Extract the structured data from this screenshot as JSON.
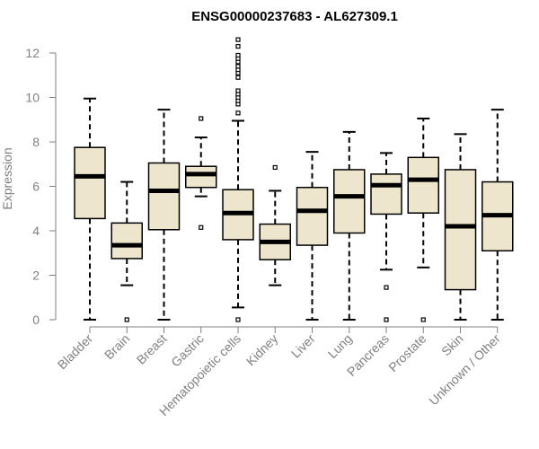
{
  "chart_data": {
    "type": "boxplot",
    "title": "ENSG00000237683 - AL627309.1",
    "xlabel": "",
    "ylabel": "Expression",
    "ylim": [
      0,
      12.6
    ],
    "yticks": [
      0,
      2,
      4,
      6,
      8,
      10,
      12
    ],
    "box_color": "#ede6cd",
    "categories": [
      "Bladder",
      "Brain",
      "Breast",
      "Gastric",
      "Hematopoietic cells",
      "Kidney",
      "Liver",
      "Lung",
      "Pancreas",
      "Prostate",
      "Skin",
      "Unknown / Other"
    ],
    "boxes": [
      {
        "category": "Bladder",
        "min": 0.0,
        "q1": 4.55,
        "median": 6.45,
        "q3": 7.75,
        "max": 9.95,
        "outliers": []
      },
      {
        "category": "Brain",
        "min": 1.55,
        "q1": 2.75,
        "median": 3.35,
        "q3": 4.35,
        "max": 6.2,
        "outliers": [
          0.0
        ]
      },
      {
        "category": "Breast",
        "min": 0.0,
        "q1": 4.05,
        "median": 5.8,
        "q3": 7.05,
        "max": 9.45,
        "outliers": []
      },
      {
        "category": "Gastric",
        "min": 5.55,
        "q1": 5.95,
        "median": 6.55,
        "q3": 6.9,
        "max": 8.2,
        "outliers": [
          9.05,
          4.15
        ]
      },
      {
        "category": "Hematopoietic cells",
        "min": 0.55,
        "q1": 3.6,
        "median": 4.8,
        "q3": 5.85,
        "max": 8.95,
        "outliers": [
          0.0,
          9.3,
          9.7,
          9.85,
          10.0,
          10.15,
          10.3,
          10.9,
          11.1,
          11.25,
          11.4,
          11.6,
          11.75,
          11.9,
          12.3,
          12.6
        ]
      },
      {
        "category": "Kidney",
        "min": 1.55,
        "q1": 2.7,
        "median": 3.5,
        "q3": 4.3,
        "max": 5.8,
        "outliers": [
          6.85
        ]
      },
      {
        "category": "Liver",
        "min": 0.0,
        "q1": 3.35,
        "median": 4.9,
        "q3": 5.95,
        "max": 7.55,
        "outliers": []
      },
      {
        "category": "Lung",
        "min": 0.0,
        "q1": 3.9,
        "median": 5.55,
        "q3": 6.75,
        "max": 8.45,
        "outliers": []
      },
      {
        "category": "Pancreas",
        "min": 2.25,
        "q1": 4.75,
        "median": 6.05,
        "q3": 6.55,
        "max": 7.5,
        "outliers": [
          1.45,
          0.0
        ]
      },
      {
        "category": "Prostate",
        "min": 2.35,
        "q1": 4.8,
        "median": 6.3,
        "q3": 7.3,
        "max": 9.05,
        "outliers": [
          0.0
        ]
      },
      {
        "category": "Skin",
        "min": 0.0,
        "q1": 1.35,
        "median": 4.2,
        "q3": 6.75,
        "max": 8.35,
        "outliers": []
      },
      {
        "category": "Unknown / Other",
        "min": 0.0,
        "q1": 3.1,
        "median": 4.7,
        "q3": 6.2,
        "max": 9.45,
        "outliers": []
      }
    ]
  }
}
